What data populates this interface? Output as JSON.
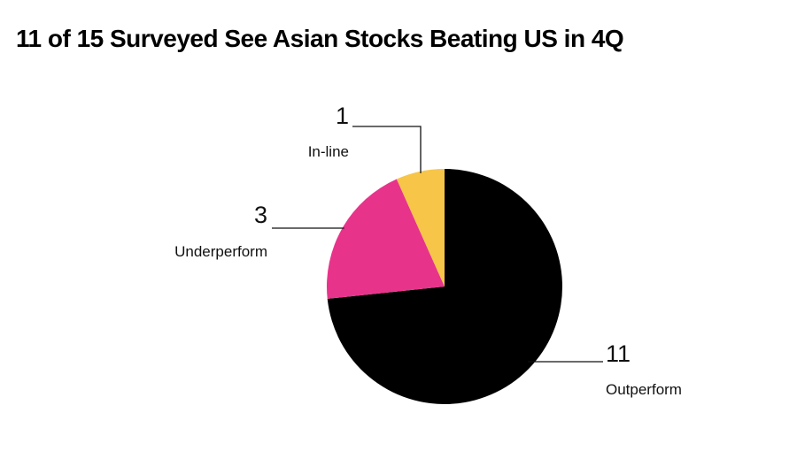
{
  "chart_data": {
    "type": "pie",
    "title": "11 of 15 Surveyed See Asian Stocks Beating US in 4Q",
    "total": 15,
    "slices": [
      {
        "label": "Outperform",
        "value": 11,
        "color": "#000000"
      },
      {
        "label": "Underperform",
        "value": 3,
        "color": "#E8338B"
      },
      {
        "label": "In-line",
        "value": 1,
        "color": "#F7C548"
      }
    ],
    "start": "12 o'clock",
    "direction": "clockwise",
    "legend": "none"
  }
}
